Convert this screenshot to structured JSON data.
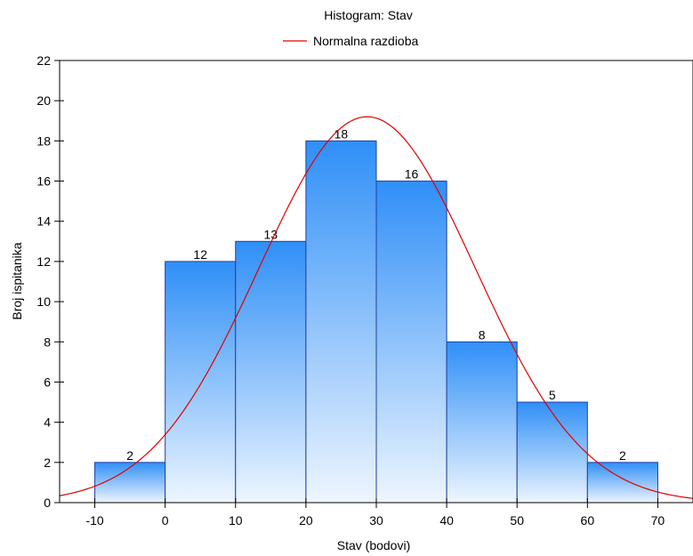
{
  "chart_data": {
    "type": "bar",
    "title": "Histogram: Stav",
    "legend": [
      {
        "name": "Normalna razdioba",
        "color": "#e00000"
      }
    ],
    "xlabel": "Stav (bodovi)",
    "ylabel": "Broj ispitanika",
    "xlim": [
      -15,
      75
    ],
    "ylim": [
      0,
      22
    ],
    "xticks": [
      -10,
      0,
      10,
      20,
      30,
      40,
      50,
      60,
      70
    ],
    "yticks": [
      0,
      2,
      4,
      6,
      8,
      10,
      12,
      14,
      16,
      18,
      20,
      22
    ],
    "bins": [
      {
        "from": -10,
        "to": 0,
        "value": 2
      },
      {
        "from": 0,
        "to": 10,
        "value": 12
      },
      {
        "from": 10,
        "to": 20,
        "value": 13
      },
      {
        "from": 20,
        "to": 30,
        "value": 18
      },
      {
        "from": 30,
        "to": 40,
        "value": 16
      },
      {
        "from": 40,
        "to": 50,
        "value": 8
      },
      {
        "from": 50,
        "to": 60,
        "value": 5
      },
      {
        "from": 60,
        "to": 70,
        "value": 2
      }
    ],
    "normal_curve": {
      "mean": 28.7,
      "sd": 15.4,
      "peak": 19.2
    },
    "colors": {
      "bar_top": "#2f8ff7",
      "bar_bottom": "#eef6ff",
      "bar_edge": "#1f3fa5",
      "curve": "#e00000"
    },
    "legend_position": "top-center",
    "grid": false
  }
}
